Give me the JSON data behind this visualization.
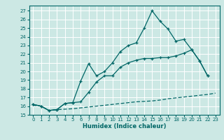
{
  "xlabel": "Humidex (Indice chaleur)",
  "bg_color": "#cce8e4",
  "grid_color": "#ffffff",
  "line_color": "#006666",
  "xlim": [
    -0.5,
    23.5
  ],
  "ylim": [
    15.0,
    27.6
  ],
  "yticks": [
    15,
    16,
    17,
    18,
    19,
    20,
    21,
    22,
    23,
    24,
    25,
    26,
    27
  ],
  "xticks": [
    0,
    1,
    2,
    3,
    4,
    5,
    6,
    7,
    8,
    9,
    10,
    11,
    12,
    13,
    14,
    15,
    16,
    17,
    18,
    19,
    20,
    21,
    22,
    23
  ],
  "curve1_x": [
    0,
    1,
    2,
    3,
    4,
    5,
    6,
    7,
    8,
    9,
    10,
    11,
    12,
    13,
    14,
    15,
    16,
    17,
    18,
    19,
    20,
    21,
    22
  ],
  "curve1_y": [
    16.2,
    16.0,
    15.5,
    15.6,
    16.3,
    16.4,
    18.9,
    20.9,
    19.5,
    20.0,
    21.0,
    22.3,
    23.0,
    23.3,
    25.0,
    27.0,
    25.8,
    24.9,
    23.5,
    23.7,
    22.5,
    21.2,
    19.5
  ],
  "curve2_x": [
    0,
    1,
    2,
    3,
    4,
    5,
    6,
    7,
    8,
    9,
    10,
    11,
    12,
    13,
    14,
    15,
    16,
    17,
    18,
    19,
    20,
    21,
    22
  ],
  "curve2_y": [
    16.2,
    16.0,
    15.5,
    15.6,
    16.3,
    16.4,
    16.5,
    17.6,
    18.8,
    19.5,
    19.5,
    20.5,
    21.0,
    21.3,
    21.5,
    21.5,
    21.6,
    21.6,
    21.8,
    22.1,
    22.5,
    21.2,
    19.5
  ],
  "curve3_x": [
    0,
    1,
    2,
    3,
    4,
    5,
    6,
    7,
    8,
    9,
    10,
    11,
    12,
    13,
    14,
    15,
    16,
    17,
    18,
    19,
    20,
    21,
    22,
    23
  ],
  "curve3_y": [
    16.1,
    16.0,
    15.5,
    15.6,
    15.65,
    15.7,
    15.8,
    15.9,
    16.0,
    16.1,
    16.2,
    16.3,
    16.4,
    16.5,
    16.55,
    16.6,
    16.7,
    16.85,
    16.95,
    17.05,
    17.15,
    17.25,
    17.35,
    17.5
  ]
}
